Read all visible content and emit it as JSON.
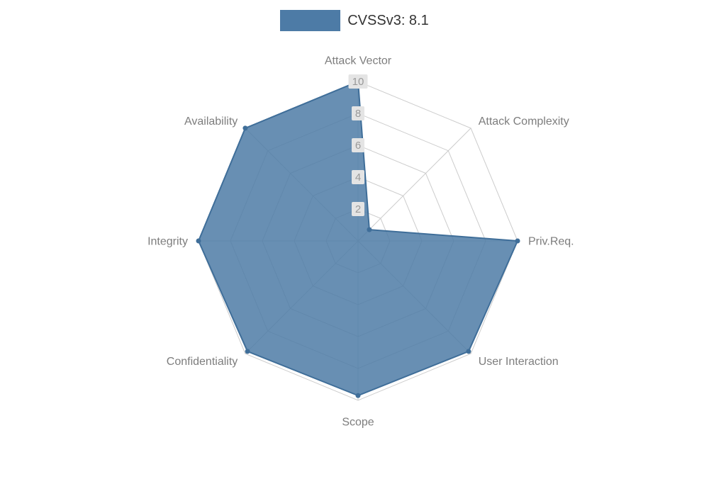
{
  "legend": {
    "label": "CVSSv3: 8.1"
  },
  "chart_data": {
    "type": "radar",
    "title": "CVSSv3: 8.1",
    "categories": [
      "Attack Vector",
      "Attack Complexity",
      "Priv.Req.",
      "User Interaction",
      "Scope",
      "Confidentiality",
      "Integrity",
      "Availability"
    ],
    "series": [
      {
        "name": "CVSSv3: 8.1",
        "values": [
          10,
          1,
          10,
          9.8,
          9.7,
          9.8,
          10,
          10
        ]
      }
    ],
    "radial_ticks": [
      2,
      4,
      6,
      8,
      10
    ],
    "max": 10,
    "grid": true,
    "grid_shape": "polygon",
    "legend_position": "top",
    "center": [
      505,
      340
    ],
    "radius": 225,
    "colors": {
      "fill": "#4d7ba6",
      "fill_opacity": 0.85,
      "stroke": "#3f6e99",
      "grid": "#cccccc",
      "axis_label": "#7d7d7d",
      "tick_label": "#999999",
      "tick_bg": "#e4e4e4",
      "legend_text": "#333333"
    }
  }
}
